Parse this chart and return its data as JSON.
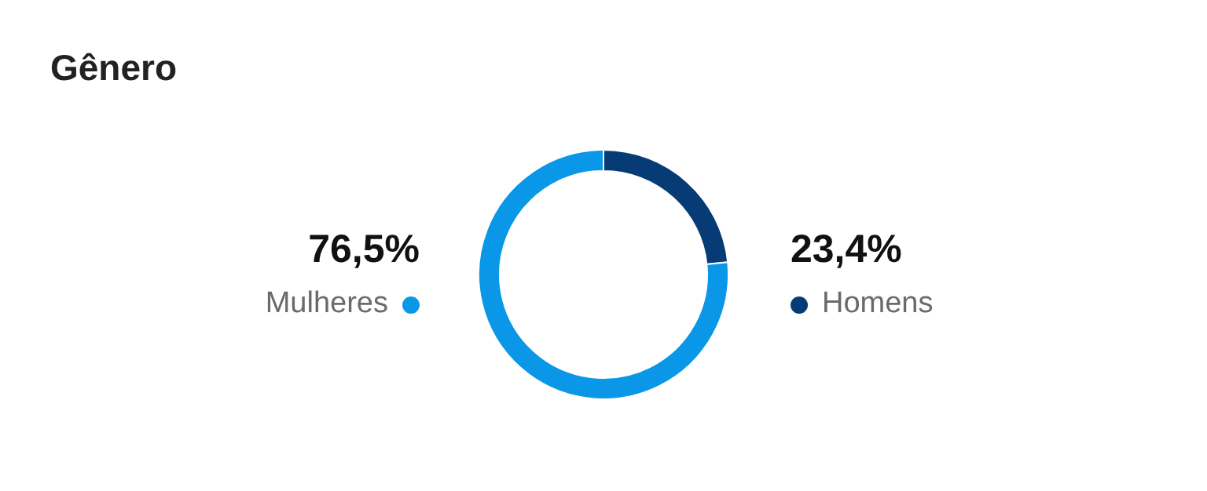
{
  "chart_data": {
    "type": "donut",
    "title": "Gênero",
    "categories": [
      "Homens",
      "Mulheres"
    ],
    "values": [
      23.4,
      76.5
    ],
    "colors": [
      "#073b76",
      "#0a97e8"
    ],
    "value_labels": [
      "23,4%",
      "76,5%"
    ]
  }
}
